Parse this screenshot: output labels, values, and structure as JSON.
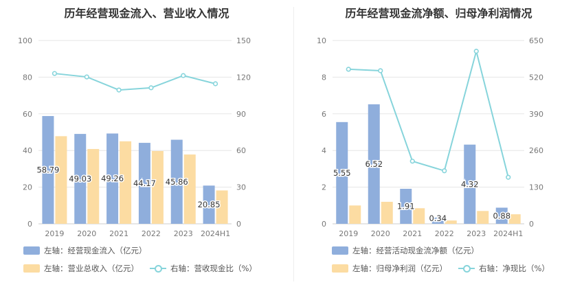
{
  "chart_data": [
    {
      "type": "bar",
      "title": "历年经营现金流入、营业收入情况",
      "categories": [
        "2019",
        "2020",
        "2021",
        "2022",
        "2023",
        "2024H1"
      ],
      "left_axis": {
        "ylim": [
          0,
          100
        ],
        "ticks": [
          "0",
          "20",
          "40",
          "60",
          "80",
          "100"
        ]
      },
      "right_axis": {
        "ylim": [
          0,
          150
        ],
        "ticks": [
          "0",
          "30",
          "60",
          "90",
          "120",
          "150"
        ]
      },
      "series": [
        {
          "name": "左轴：经营现金流入（亿元）",
          "kind": "bar",
          "axis": "left",
          "color": "#8FAEDC",
          "values": [
            58.79,
            49.03,
            49.26,
            44.17,
            45.86,
            20.85
          ],
          "labels": [
            "58.79",
            "49.03",
            "49.26",
            "44.17",
            "45.86",
            "20.85"
          ]
        },
        {
          "name": "左轴：营业总收入（亿元）",
          "kind": "bar",
          "axis": "left",
          "color": "#FCDCA2",
          "values": [
            47.8,
            40.8,
            45.0,
            39.7,
            37.8,
            18.2
          ]
        },
        {
          "name": "右轴：营收现金比（%）",
          "kind": "line",
          "axis": "right",
          "color": "#86D4DB",
          "values": [
            123.0,
            120.2,
            109.5,
            111.3,
            121.3,
            114.6
          ]
        }
      ],
      "grid": true,
      "legend": "bottom"
    },
    {
      "type": "bar",
      "title": "历年经营现金流净额、归母净利润情况",
      "categories": [
        "2019",
        "2020",
        "2021",
        "2022",
        "2023",
        "2024H1"
      ],
      "left_axis": {
        "ylim": [
          0,
          10
        ],
        "ticks": [
          "0",
          "2",
          "4",
          "6",
          "8",
          "10"
        ]
      },
      "right_axis": {
        "ylim": [
          0,
          650
        ],
        "ticks": [
          "0",
          "130",
          "260",
          "390",
          "520",
          "650"
        ]
      },
      "series": [
        {
          "name": "左轴：经营活动现金流净额（亿元）",
          "kind": "bar",
          "axis": "left",
          "color": "#8FAEDC",
          "values": [
            5.55,
            6.52,
            1.91,
            0.34,
            4.32,
            0.88
          ],
          "labels": [
            "5.55",
            "6.52",
            "1.91",
            "0.34",
            "4.32",
            "0.88"
          ]
        },
        {
          "name": "左轴：归母净利润（亿元）",
          "kind": "bar",
          "axis": "left",
          "color": "#FCDCA2",
          "values": [
            1.0,
            1.2,
            0.85,
            0.18,
            0.7,
            0.52
          ]
        },
        {
          "name": "右轴：净现比（%）",
          "kind": "line",
          "axis": "right",
          "color": "#86D4DB",
          "values": [
            548,
            543,
            222,
            188,
            612,
            165
          ]
        }
      ],
      "grid": true,
      "legend": "bottom"
    }
  ]
}
